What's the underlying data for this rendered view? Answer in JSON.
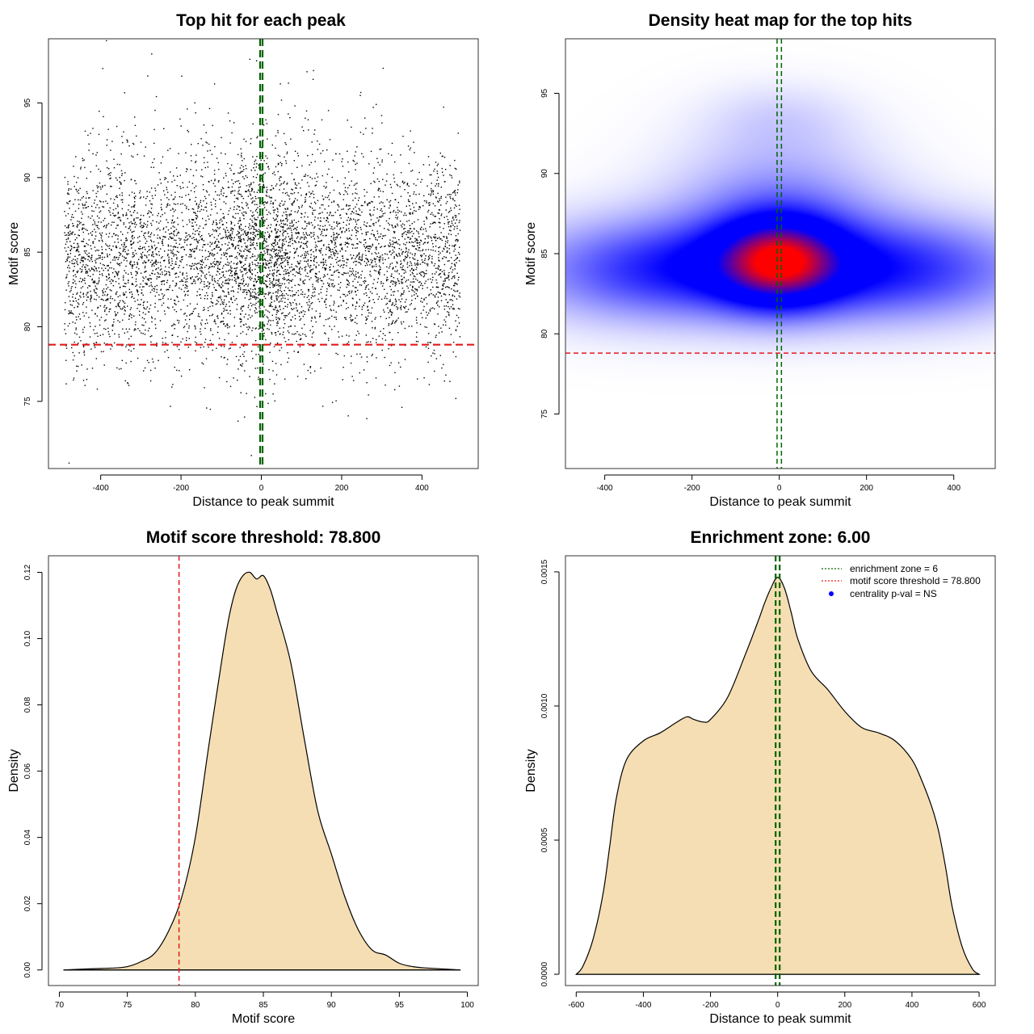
{
  "colors": {
    "points": "#000000",
    "threshold_line": "#e41a1c",
    "zone_line": "#006400",
    "density_fill": "#f5deb3",
    "heat_low": "#ffffff",
    "heat_mid": "#0000ff",
    "heat_high": "#ff0000",
    "pval_point": "#0000ff"
  },
  "chart_data": [
    {
      "id": "top_hits",
      "type": "scatter",
      "title": "Top hit for each peak",
      "xlabel": "Distance to peak summit",
      "ylabel": "Motif score",
      "xlim": [
        -530,
        540
      ],
      "ylim": [
        70.5,
        99.3
      ],
      "xticks": [
        -400,
        -200,
        0,
        200,
        400
      ],
      "yticks": [
        75,
        80,
        85,
        90,
        95
      ],
      "n_points": 6000,
      "point_distribution": {
        "x_range": [
          -490,
          495
        ],
        "y_mean": 84.7,
        "y_sd": 3.3,
        "central_boost_center": 0
      },
      "hlines": [
        {
          "y": 78.8,
          "color_key": "threshold_line",
          "style": "dashed"
        }
      ],
      "vlines": [
        {
          "x": -3,
          "color_key": "zone_line",
          "style": "dashed"
        },
        {
          "x": 3,
          "color_key": "zone_line",
          "style": "dashed"
        }
      ]
    },
    {
      "id": "heatmap",
      "type": "heatmap",
      "title": "Density heat map for the top hits",
      "xlabel": "Distance to peak summit",
      "ylabel": "Motif score",
      "xlim": [
        -490,
        495
      ],
      "ylim": [
        71.6,
        98.4
      ],
      "xticks": [
        -400,
        -200,
        0,
        200,
        400
      ],
      "yticks": [
        75,
        80,
        85,
        90,
        95
      ],
      "density_blobs": [
        {
          "x": 0,
          "y": 84.5,
          "sx": 95,
          "sy": 1.9,
          "w": 0.75
        },
        {
          "x": -250,
          "y": 84.0,
          "sx": 230,
          "sy": 2.2,
          "w": 0.5
        },
        {
          "x": 250,
          "y": 84.0,
          "sx": 230,
          "sy": 2.2,
          "w": 0.5
        },
        {
          "x": 0,
          "y": 88.0,
          "sx": 170,
          "sy": 3.0,
          "w": 0.25
        },
        {
          "x": 0,
          "y": 93.5,
          "sx": 120,
          "sy": 1.5,
          "w": 0.08
        }
      ],
      "hlines": [
        {
          "y": 78.8,
          "color_key": "threshold_line",
          "style": "dashed"
        }
      ],
      "vlines": [
        {
          "x": -5,
          "color_key": "zone_line",
          "style": "dashed"
        },
        {
          "x": 5,
          "color_key": "zone_line",
          "style": "dashed"
        }
      ]
    },
    {
      "id": "score_density",
      "type": "area",
      "title": "Motif score threshold: 78.800",
      "xlabel": "Motif score",
      "ylabel": "Density",
      "xlim": [
        69.2,
        100.8
      ],
      "ylim": [
        -0.0047,
        0.125
      ],
      "xticks": [
        70,
        75,
        80,
        85,
        90,
        95,
        100
      ],
      "yticks": [
        0.0,
        0.02,
        0.04,
        0.06,
        0.08,
        0.1,
        0.12
      ],
      "ytick_labels": [
        "0.00",
        "0.02",
        "0.04",
        "0.06",
        "0.08",
        "0.10",
        "0.12"
      ],
      "x": [
        70.3,
        72,
        74,
        75,
        76,
        77,
        78,
        79,
        80,
        81,
        82,
        82.5,
        83,
        83.5,
        84,
        84.5,
        85,
        85.5,
        86,
        87,
        88,
        89,
        90,
        91,
        92,
        93,
        94,
        95,
        96,
        97,
        99.5
      ],
      "y": [
        0.0,
        0.0003,
        0.0006,
        0.001,
        0.0025,
        0.005,
        0.0115,
        0.022,
        0.04,
        0.068,
        0.095,
        0.107,
        0.115,
        0.119,
        0.12,
        0.118,
        0.119,
        0.115,
        0.108,
        0.093,
        0.07,
        0.048,
        0.035,
        0.022,
        0.012,
        0.006,
        0.0045,
        0.002,
        0.001,
        0.0006,
        0.0
      ],
      "vlines": [
        {
          "x": 78.8,
          "color_key": "threshold_line",
          "style": "dashed"
        }
      ]
    },
    {
      "id": "distance_density",
      "type": "area",
      "title": "Enrichment zone: 6.00",
      "xlabel": "Distance to peak summit",
      "ylabel": "Density",
      "xlim": [
        -632,
        648
      ],
      "ylim": [
        -4.2e-05,
        0.00156
      ],
      "xticks": [
        -600,
        -400,
        -200,
        0,
        200,
        400,
        600
      ],
      "yticks": [
        0.0,
        0.0005,
        0.001,
        0.0015
      ],
      "ytick_labels": [
        "0.0000",
        "0.0005",
        "0.0010",
        "0.0015"
      ],
      "x": [
        -600,
        -580,
        -550,
        -520,
        -500,
        -480,
        -450,
        -400,
        -350,
        -300,
        -270,
        -250,
        -220,
        -200,
        -150,
        -100,
        -60,
        -40,
        -20,
        0,
        20,
        40,
        60,
        100,
        150,
        200,
        250,
        300,
        350,
        400,
        430,
        460,
        480,
        500,
        520,
        550,
        580,
        600
      ],
      "y": [
        0.0,
        3e-05,
        0.00013,
        0.0003,
        0.00048,
        0.00066,
        0.0008,
        0.00087,
        0.0009,
        0.00094,
        0.00096,
        0.00095,
        0.00094,
        0.00095,
        0.00103,
        0.00118,
        0.00131,
        0.00138,
        0.00144,
        0.00148,
        0.00144,
        0.00135,
        0.00125,
        0.00113,
        0.00106,
        0.00098,
        0.00092,
        0.0009,
        0.00087,
        0.0008,
        0.00072,
        0.00062,
        0.00053,
        0.0004,
        0.00025,
        0.0001,
        2e-05,
        0.0
      ],
      "vlines": [
        {
          "x": -6,
          "color_key": "zone_line",
          "style": "dashed"
        },
        {
          "x": 6,
          "color_key": "zone_line",
          "style": "dashed"
        }
      ],
      "legend": {
        "placement": "top-right",
        "entries": [
          {
            "label": "enrichment zone = 6",
            "symbol": "dotted-line",
            "color_key": "zone_line"
          },
          {
            "label": "motif score threshold = 78.800",
            "symbol": "dotted-line",
            "color_key": "threshold_line"
          },
          {
            "label": "centrality p-val = NS",
            "symbol": "point",
            "color_key": "pval_point"
          }
        ]
      }
    }
  ]
}
